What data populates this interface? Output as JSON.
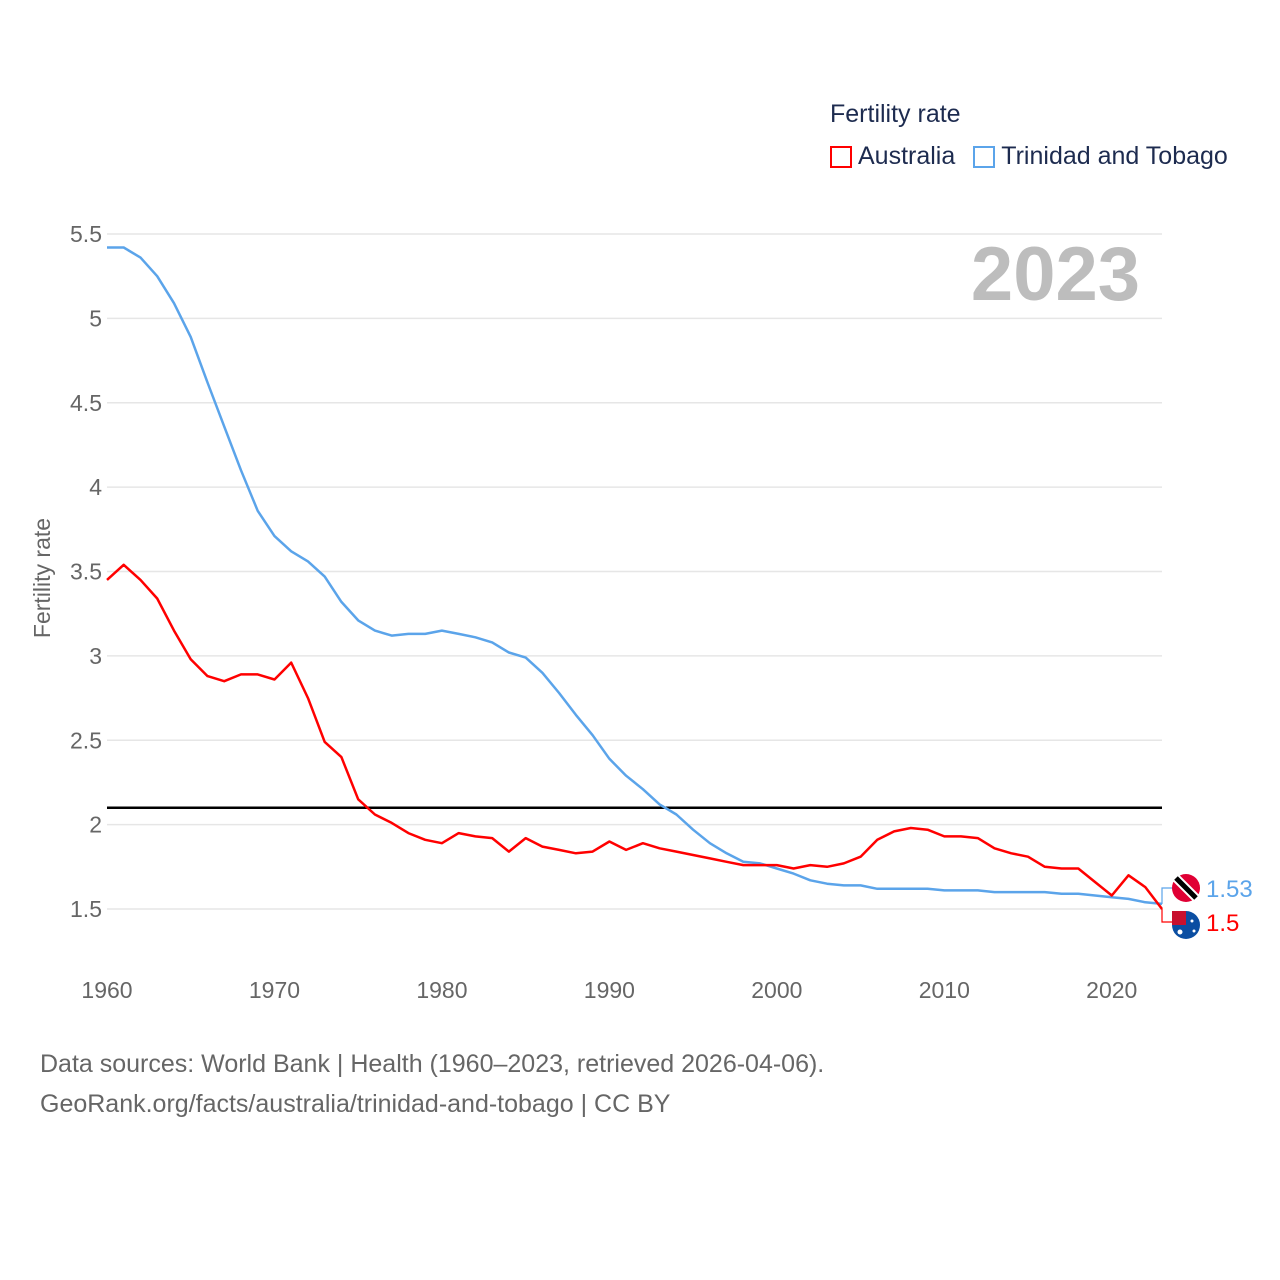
{
  "legend": {
    "title": "Fertility rate",
    "items": [
      {
        "label": "Australia",
        "color": "#ff0000"
      },
      {
        "label": "Trinidad and Tobago",
        "color": "#5ba4ea"
      }
    ]
  },
  "year_label": "2023",
  "footer": {
    "line1": "Data sources: World Bank | Health (1960–2023, retrieved 2026-04-06).",
    "line2": "GeoRank.org/facts/australia/trinidad-and-tobago | CC BY"
  },
  "chart_data": {
    "type": "line",
    "title": "Fertility rate",
    "xlabel": "",
    "ylabel": "Fertility rate",
    "xlim": [
      1960,
      2023
    ],
    "ylim": [
      1.2,
      5.6
    ],
    "x_ticks": [
      1960,
      1970,
      1980,
      1990,
      2000,
      2010,
      2020
    ],
    "y_ticks": [
      1.5,
      2,
      2.5,
      3,
      3.5,
      4,
      4.5,
      5,
      5.5
    ],
    "y_tick_labels": [
      "1.5",
      "2",
      "2.5",
      "3",
      "3.5",
      "4",
      "4.5",
      "5",
      "5.5"
    ],
    "x_tick_labels": [
      "1960",
      "1970",
      "1980",
      "1990",
      "2000",
      "2010",
      "2020"
    ],
    "grid": true,
    "legend_position": "top-right",
    "reference_line": {
      "value": 2.1,
      "color": "#000000"
    },
    "x": [
      1960,
      1961,
      1962,
      1963,
      1964,
      1965,
      1966,
      1967,
      1968,
      1969,
      1970,
      1971,
      1972,
      1973,
      1974,
      1975,
      1976,
      1977,
      1978,
      1979,
      1980,
      1981,
      1982,
      1983,
      1984,
      1985,
      1986,
      1987,
      1988,
      1989,
      1990,
      1991,
      1992,
      1993,
      1994,
      1995,
      1996,
      1997,
      1998,
      1999,
      2000,
      2001,
      2002,
      2003,
      2004,
      2005,
      2006,
      2007,
      2008,
      2009,
      2010,
      2011,
      2012,
      2013,
      2014,
      2015,
      2016,
      2017,
      2018,
      2019,
      2020,
      2021,
      2022,
      2023
    ],
    "series": [
      {
        "name": "Australia",
        "color": "#ff0000",
        "end_label": "1.5",
        "values": [
          3.45,
          3.54,
          3.45,
          3.34,
          3.15,
          2.98,
          2.88,
          2.85,
          2.89,
          2.89,
          2.86,
          2.96,
          2.75,
          2.49,
          2.4,
          2.15,
          2.06,
          2.01,
          1.95,
          1.91,
          1.89,
          1.95,
          1.93,
          1.92,
          1.84,
          1.92,
          1.87,
          1.85,
          1.83,
          1.84,
          1.9,
          1.85,
          1.89,
          1.86,
          1.84,
          1.82,
          1.8,
          1.78,
          1.76,
          1.76,
          1.76,
          1.74,
          1.76,
          1.75,
          1.77,
          1.81,
          1.91,
          1.96,
          1.98,
          1.97,
          1.93,
          1.93,
          1.92,
          1.86,
          1.83,
          1.81,
          1.75,
          1.74,
          1.74,
          1.66,
          1.58,
          1.7,
          1.63,
          1.5
        ]
      },
      {
        "name": "Trinidad and Tobago",
        "color": "#5ba4ea",
        "end_label": "1.53",
        "values": [
          5.42,
          5.42,
          5.36,
          5.25,
          5.09,
          4.89,
          4.62,
          4.36,
          4.1,
          3.86,
          3.71,
          3.62,
          3.56,
          3.47,
          3.32,
          3.21,
          3.15,
          3.12,
          3.13,
          3.13,
          3.15,
          3.13,
          3.11,
          3.08,
          3.02,
          2.99,
          2.9,
          2.78,
          2.65,
          2.53,
          2.39,
          2.29,
          2.21,
          2.12,
          2.06,
          1.97,
          1.89,
          1.83,
          1.78,
          1.77,
          1.74,
          1.71,
          1.67,
          1.65,
          1.64,
          1.64,
          1.62,
          1.62,
          1.62,
          1.62,
          1.61,
          1.61,
          1.61,
          1.6,
          1.6,
          1.6,
          1.6,
          1.59,
          1.59,
          1.58,
          1.57,
          1.56,
          1.54,
          1.53
        ]
      }
    ]
  }
}
